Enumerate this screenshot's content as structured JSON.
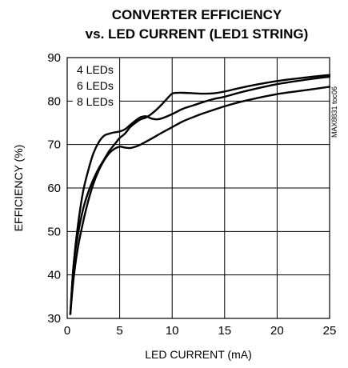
{
  "chart_data": {
    "type": "line",
    "title": "CONVERTER EFFICIENCY",
    "subtitle": "vs. LED CURRENT (LED1 STRING)",
    "xlabel": "LED CURRENT (mA)",
    "ylabel": "EFFICIENCY (%)",
    "xlim": [
      0,
      25
    ],
    "ylim": [
      30,
      90
    ],
    "xticks": [
      "0",
      "5",
      "10",
      "15",
      "20",
      "25"
    ],
    "yticks": [
      "30",
      "40",
      "50",
      "60",
      "70",
      "80",
      "90"
    ],
    "grid": true,
    "legend_position": "top-left",
    "side_label": "MAX8831 toc06",
    "series": [
      {
        "name": "4 LEDs",
        "x": [
          0.3,
          0.6,
          1,
          1.5,
          2,
          2.5,
          3,
          3.5,
          4,
          4.5,
          5,
          5.5,
          6,
          6.5,
          7,
          7.5,
          8,
          8.5,
          9,
          10,
          11,
          12,
          13,
          14,
          15,
          17,
          20,
          23,
          25
        ],
        "y": [
          31,
          42,
          51,
          59,
          64,
          68,
          70.5,
          72,
          72.5,
          72.8,
          73,
          73.5,
          74.5,
          75.5,
          76.3,
          76.5,
          76,
          75.8,
          76,
          77,
          78.2,
          79,
          79.8,
          80.5,
          81,
          82.3,
          83.9,
          85,
          85.6
        ]
      },
      {
        "name": "6 LEDs",
        "x": [
          0.3,
          0.6,
          1,
          1.5,
          2,
          2.5,
          3,
          3.5,
          4,
          4.5,
          5,
          5.5,
          6,
          6.5,
          7,
          7.5,
          8,
          8.5,
          9,
          9.5,
          10,
          10.5,
          11,
          12,
          13,
          14,
          15,
          17,
          20,
          23,
          25
        ],
        "y": [
          31,
          42,
          49,
          55,
          59,
          62,
          64.5,
          66.5,
          68.5,
          70,
          71.5,
          72.5,
          74,
          75,
          75.8,
          76.2,
          77,
          78,
          79.2,
          80.5,
          81.7,
          81.9,
          81.9,
          81.8,
          81.7,
          81.8,
          82.2,
          83.3,
          84.6,
          85.5,
          86
        ]
      },
      {
        "name": "8 LEDs",
        "x": [
          0.3,
          0.6,
          1,
          1.5,
          2,
          2.5,
          3,
          3.5,
          4,
          4.5,
          5,
          5.5,
          6,
          6.5,
          7,
          8,
          9,
          10,
          11,
          12,
          13,
          15,
          17,
          20,
          23,
          25
        ],
        "y": [
          31,
          39,
          46,
          52,
          57,
          61,
          64,
          66.3,
          68,
          69,
          69.5,
          69.3,
          69.2,
          69.5,
          70,
          71.3,
          72.7,
          74,
          75.3,
          76.3,
          77.2,
          78.8,
          80.1,
          81.6,
          82.6,
          83.3
        ]
      }
    ]
  }
}
